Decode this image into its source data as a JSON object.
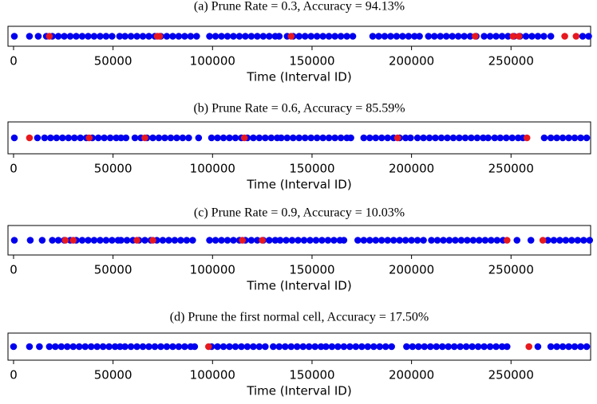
{
  "chart_data": [
    {
      "type": "scatter",
      "title": "(a) Prune Rate = 0.3, Accuracy = 94.13%",
      "xlabel": "Time (Interval ID)",
      "xlim": [
        -2800,
        290000
      ],
      "xticks": [
        0,
        50000,
        100000,
        150000,
        200000,
        250000
      ],
      "series": [
        {
          "color": "#0000ee",
          "x": [
            400,
            8000,
            12400,
            16500,
            19500,
            22500,
            25500,
            28500,
            31500,
            34500,
            37500,
            40500,
            43500,
            46500,
            49500,
            53300,
            56000,
            59000,
            62000,
            65000,
            68000,
            71000,
            74000,
            77000,
            80000,
            83000,
            86000,
            89000,
            92000,
            98500,
            101500,
            104500,
            107500,
            110500,
            113500,
            116500,
            119500,
            122500,
            125500,
            128500,
            131500,
            133500,
            137500,
            140500,
            143500,
            146500,
            149500,
            152500,
            155500,
            158500,
            161500,
            164500,
            167500,
            170500,
            180500,
            183500,
            186500,
            189500,
            192500,
            195500,
            198500,
            201500,
            204000,
            208500,
            211500,
            214500,
            217500,
            220500,
            223500,
            226500,
            229500,
            232500,
            236500,
            239500,
            242500,
            245500,
            248500,
            251500,
            254500,
            257500,
            260500,
            263500,
            266500,
            270000,
            286000,
            289000
          ]
        },
        {
          "color": "#e6191e",
          "x": [
            18000,
            72200,
            73400,
            139500,
            232000,
            251000,
            254000,
            277000,
            282700
          ]
        }
      ]
    },
    {
      "type": "scatter",
      "title": "(b) Prune Rate = 0.6, Accuracy = 85.59%",
      "xlabel": "Time (Interval ID)",
      "xlim": [
        -2800,
        290000
      ],
      "xticks": [
        0,
        50000,
        100000,
        150000,
        200000,
        250000
      ],
      "series": [
        {
          "color": "#0000ee",
          "x": [
            400,
            12000,
            15600,
            18600,
            21600,
            24600,
            27600,
            30600,
            33600,
            36600,
            39600,
            42600,
            45600,
            48600,
            51600,
            54000,
            56500,
            61000,
            64000,
            67000,
            70000,
            73000,
            76000,
            79000,
            82000,
            85000,
            88000,
            93000,
            99500,
            102500,
            105500,
            108500,
            111500,
            114500,
            117500,
            120500,
            123500,
            126500,
            129500,
            132500,
            134500,
            137500,
            140500,
            143500,
            146500,
            149500,
            152500,
            155500,
            158500,
            161500,
            164500,
            167500,
            169500,
            176000,
            179000,
            182000,
            185000,
            188000,
            191000,
            194000,
            197000,
            199500,
            203000,
            206000,
            209000,
            212000,
            215000,
            218000,
            221000,
            224000,
            227000,
            230000,
            233000,
            236000,
            238500,
            241800,
            244600,
            247600,
            250600,
            253600,
            256000,
            266700,
            270000,
            273000,
            276000,
            279000,
            282000,
            285000,
            288000
          ]
        },
        {
          "color": "#e6191e",
          "x": [
            8000,
            38000,
            66000,
            116000,
            193000,
            258000
          ]
        }
      ]
    },
    {
      "type": "scatter",
      "title": "(c) Prune Rate = 0.9, Accuracy = 10.03%",
      "xlabel": "Time (Interval ID)",
      "xlim": [
        -2800,
        290000
      ],
      "xticks": [
        0,
        50000,
        100000,
        150000,
        200000,
        250000
      ],
      "series": [
        {
          "color": "#0000ee",
          "x": [
            400,
            8400,
            14400,
            19500,
            22500,
            25500,
            28500,
            31500,
            34500,
            37500,
            40500,
            43500,
            46500,
            49500,
            52500,
            54000,
            57000,
            60000,
            63000,
            66000,
            69000,
            72000,
            75000,
            78000,
            81000,
            84000,
            87000,
            90000,
            98500,
            101500,
            104500,
            107500,
            110500,
            113500,
            116500,
            119500,
            122500,
            125500,
            128500,
            131500,
            134000,
            137000,
            140000,
            143000,
            146000,
            149000,
            152000,
            155000,
            158000,
            161000,
            164000,
            166000,
            173000,
            176000,
            179000,
            182000,
            185000,
            188000,
            191000,
            194000,
            197000,
            200000,
            203000,
            206000,
            210000,
            213000,
            216000,
            219000,
            222000,
            225000,
            228000,
            231000,
            234000,
            237000,
            240000,
            243000,
            246000,
            253000,
            260000,
            268500,
            271500,
            274500,
            277500,
            280500,
            283500,
            286500,
            289500
          ]
        },
        {
          "color": "#e6191e",
          "x": [
            26000,
            30000,
            62000,
            70000,
            115000,
            125000,
            248000,
            266000
          ]
        }
      ]
    },
    {
      "type": "scatter",
      "title": "(d) Prune the first normal cell, Accuracy = 17.50%",
      "xlabel": "Time (Interval ID)",
      "xlim": [
        -2800,
        290000
      ],
      "xticks": [
        0,
        50000,
        100000,
        150000,
        200000,
        250000
      ],
      "series": [
        {
          "color": "#0000ee",
          "x": [
            0,
            8000,
            13000,
            18000,
            21000,
            24000,
            27000,
            30000,
            33000,
            36000,
            39000,
            42000,
            45000,
            48000,
            51000,
            53500,
            56000,
            59000,
            62000,
            65000,
            68000,
            71000,
            74000,
            77000,
            80000,
            83000,
            86000,
            89000,
            91000,
            99500,
            102500,
            105500,
            108500,
            111500,
            114500,
            117500,
            120500,
            123500,
            126500,
            130500,
            133500,
            136500,
            139500,
            142500,
            145500,
            148500,
            151500,
            154500,
            157000,
            160000,
            163000,
            166000,
            169000,
            172000,
            175000,
            178000,
            181000,
            184000,
            187000,
            190000,
            197500,
            200500,
            203500,
            206500,
            209500,
            212500,
            215500,
            218500,
            221500,
            224500,
            227500,
            230500,
            233500,
            236500,
            239500,
            242500,
            245500,
            248000,
            263500,
            270000,
            273000,
            276000,
            279000,
            282000,
            285000,
            288000
          ]
        },
        {
          "color": "#e6191e",
          "x": [
            98000,
            259000
          ]
        }
      ]
    }
  ]
}
